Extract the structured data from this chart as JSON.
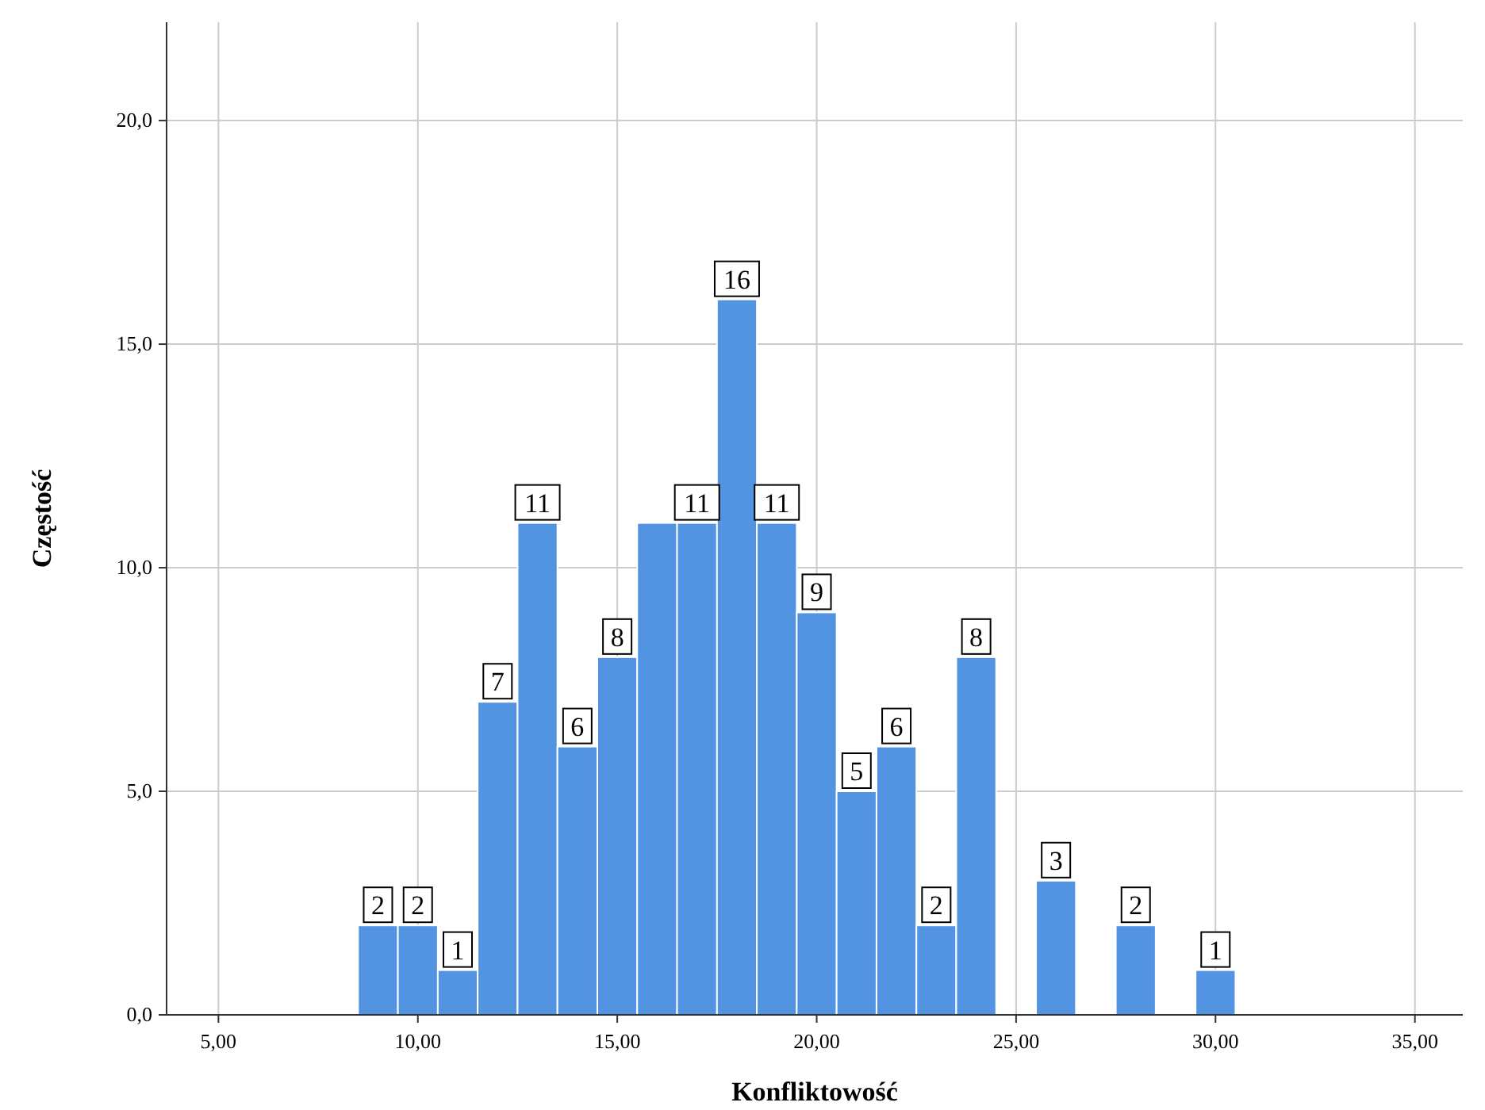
{
  "chart_data": {
    "type": "histogram",
    "xlabel": "Konfliktowość",
    "ylabel": "Częstość",
    "bins": [
      8.5,
      9.5,
      10.5,
      11.5,
      12.5,
      13.5,
      14.5,
      15.5,
      16.5,
      17.5,
      18.5,
      19.5,
      20.5,
      21.5,
      22.5,
      23.5,
      24.5,
      25.5,
      26.5,
      27.5,
      28.5,
      29.5,
      30.5
    ],
    "values": [
      2,
      2,
      1,
      7,
      11,
      6,
      8,
      11,
      11,
      16,
      11,
      9,
      5,
      6,
      2,
      8,
      0,
      3,
      0,
      2,
      0,
      1
    ],
    "value_labels": [
      "2",
      "2",
      "1",
      "7",
      "11",
      "6",
      "8",
      null,
      "11",
      "16",
      "11",
      "9",
      "5",
      "6",
      "2",
      "8",
      null,
      "3",
      null,
      "2",
      null,
      "1"
    ],
    "color": "#5294e2",
    "xlim": [
      3.7,
      36.2
    ],
    "xticks": [
      {
        "value": 5,
        "label": "5,00"
      },
      {
        "value": 10,
        "label": "10,00"
      },
      {
        "value": 15,
        "label": "15,00"
      },
      {
        "value": 20,
        "label": "20,00"
      },
      {
        "value": 25,
        "label": "25,00"
      },
      {
        "value": 30,
        "label": "30,00"
      },
      {
        "value": 35,
        "label": "35,00"
      }
    ],
    "ylim": [
      0,
      22.2
    ],
    "yticks": [
      {
        "value": 0,
        "label": "0,0"
      },
      {
        "value": 5,
        "label": "5,0"
      },
      {
        "value": 10,
        "label": "10,0"
      },
      {
        "value": 15,
        "label": "15,0"
      },
      {
        "value": 20,
        "label": "20,0"
      }
    ],
    "grid": true
  }
}
